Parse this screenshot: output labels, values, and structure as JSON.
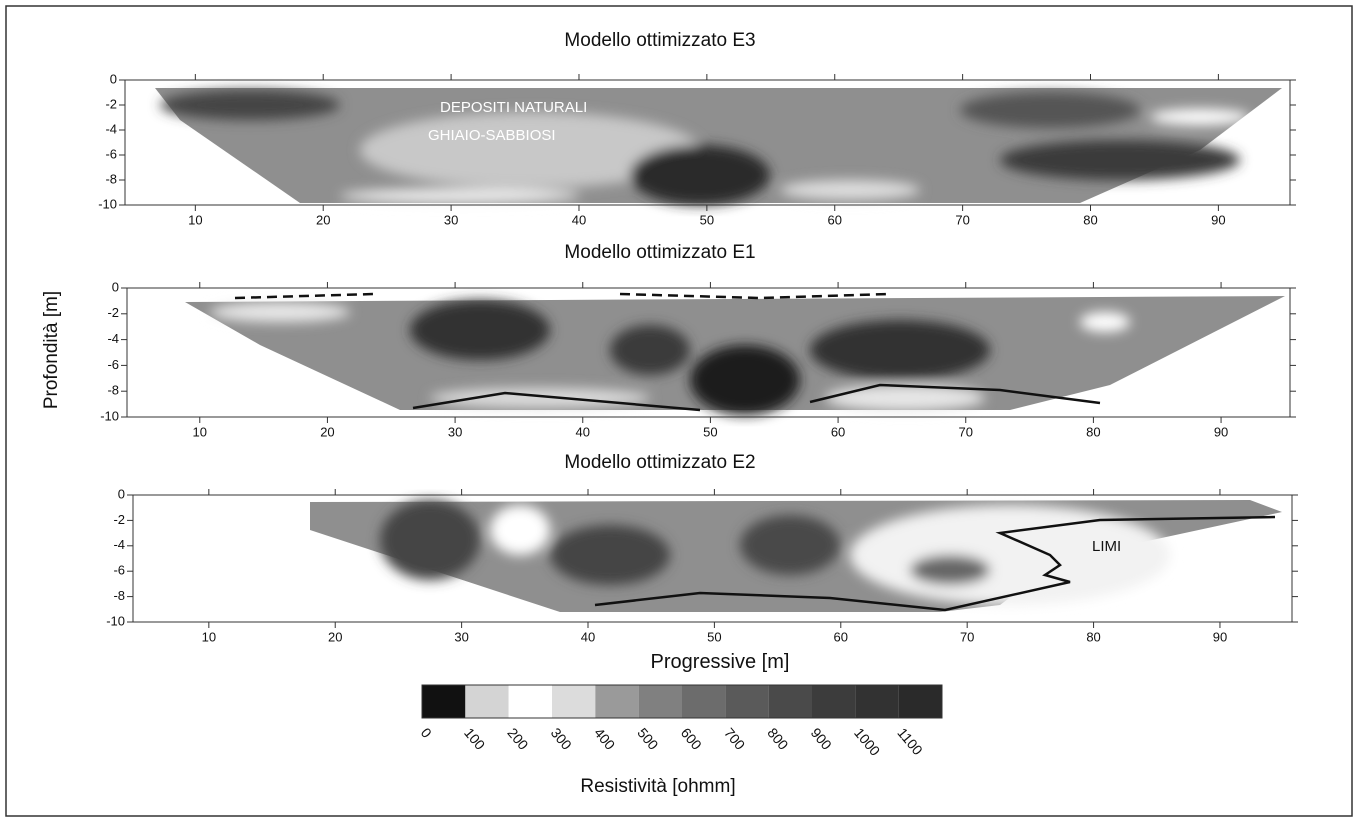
{
  "ylabel": "Profondità [m]",
  "xlabel": "Progressive [m]",
  "chart_data": [
    {
      "type": "contour",
      "title": "Modello ottimizzato E3",
      "xlim": [
        4.5,
        95.6
      ],
      "ylim": [
        -10,
        0
      ],
      "xticks": [
        10,
        20,
        30,
        40,
        50,
        60,
        70,
        80,
        90
      ],
      "yticks": [
        0,
        -2,
        -4,
        -6,
        -8,
        -10
      ],
      "annotations": [
        "DEPOSITI NATURALI",
        "GHIAIO-SABBIOSI"
      ]
    },
    {
      "type": "contour",
      "title": "Modello ottimizzato E1",
      "xlim": [
        4.3,
        95.4
      ],
      "ylim": [
        -10,
        0
      ],
      "xticks": [
        10,
        20,
        30,
        40,
        50,
        60,
        70,
        80,
        90
      ],
      "yticks": [
        0,
        -2,
        -4,
        -6,
        -8,
        -10
      ]
    },
    {
      "type": "contour",
      "title": "Modello ottimizzato E2",
      "xlim": [
        4.0,
        95.7
      ],
      "ylim": [
        -10,
        0
      ],
      "xticks": [
        10,
        20,
        30,
        40,
        50,
        60,
        70,
        80,
        90
      ],
      "yticks": [
        0,
        -2,
        -4,
        -6,
        -8,
        -10
      ],
      "annotations": [
        "LIMI"
      ]
    }
  ],
  "colorbar": {
    "label": "Resistività  [ohmm]",
    "ticks": [
      0,
      100,
      200,
      300,
      400,
      500,
      600,
      700,
      800,
      900,
      1000,
      1100
    ],
    "colors": [
      "#111111",
      "#d4d4d4",
      "#ffffff",
      "#dcdcdc",
      "#9a9a9a",
      "#808080",
      "#6c6c6c",
      "#5a5a5a",
      "#4a4a4a",
      "#3c3c3c",
      "#323232",
      "#2a2a2a"
    ]
  }
}
